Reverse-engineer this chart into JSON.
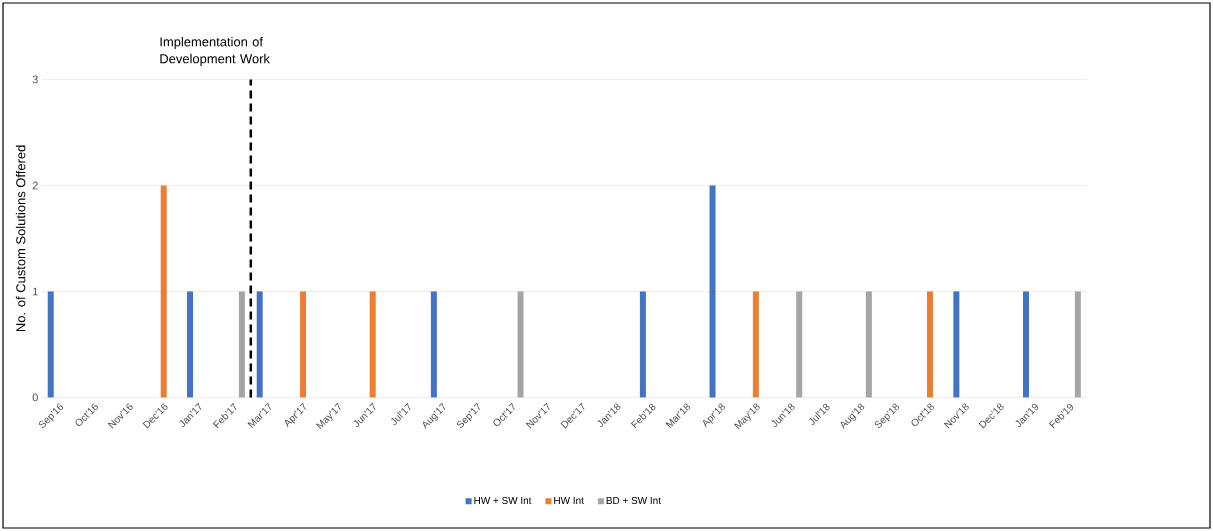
{
  "chart_data": {
    "type": "bar",
    "ylabel": "No. of Custom Solutions Offered",
    "categories": [
      "Sep'16",
      "Oct'16",
      "Nov'16",
      "Dec'16",
      "Jan'17",
      "Feb'17",
      "Mar'17",
      "Apr'17",
      "May'17",
      "Jun'17",
      "Jul'17",
      "Aug'17",
      "Sep'17",
      "Oct'17",
      "Nov'17",
      "Dec'17",
      "Jan'18",
      "Feb'18",
      "Mar'18",
      "Apr'18",
      "May'18",
      "Jun'18",
      "Jul'18",
      "Aug'18",
      "Sep'18",
      "Oct'18",
      "Nov'18",
      "Dec'18",
      "Jan'19",
      "Feb'19"
    ],
    "series": [
      {
        "name": "HW + SW Int",
        "color": "#4472c4",
        "values": [
          1,
          0,
          0,
          0,
          1,
          0,
          1,
          0,
          0,
          0,
          0,
          1,
          0,
          0,
          0,
          0,
          0,
          1,
          0,
          2,
          0,
          0,
          0,
          0,
          0,
          0,
          1,
          0,
          1,
          0
        ]
      },
      {
        "name": "HW Int",
        "color": "#ed7d31",
        "values": [
          0,
          0,
          0,
          2,
          0,
          0,
          0,
          1,
          0,
          1,
          0,
          0,
          0,
          0,
          0,
          0,
          0,
          0,
          0,
          0,
          1,
          0,
          0,
          0,
          0,
          1,
          0,
          0,
          0,
          0
        ]
      },
      {
        "name": "BD + SW Int",
        "color": "#a5a5a5",
        "values": [
          0,
          0,
          0,
          0,
          0,
          1,
          0,
          0,
          0,
          0,
          0,
          0,
          0,
          1,
          0,
          0,
          0,
          0,
          0,
          0,
          0,
          1,
          0,
          1,
          0,
          0,
          0,
          0,
          0,
          1
        ]
      }
    ],
    "ylim": [
      0,
      3
    ],
    "yticks": [
      0,
      1,
      2,
      3
    ],
    "grid": "y",
    "legend": "bottom",
    "ref_lines": [
      {
        "axis": "x",
        "value": "Mar'17",
        "label": "Implementation of Development Work",
        "color": "#000000",
        "line_style": "dashed"
      }
    ]
  }
}
